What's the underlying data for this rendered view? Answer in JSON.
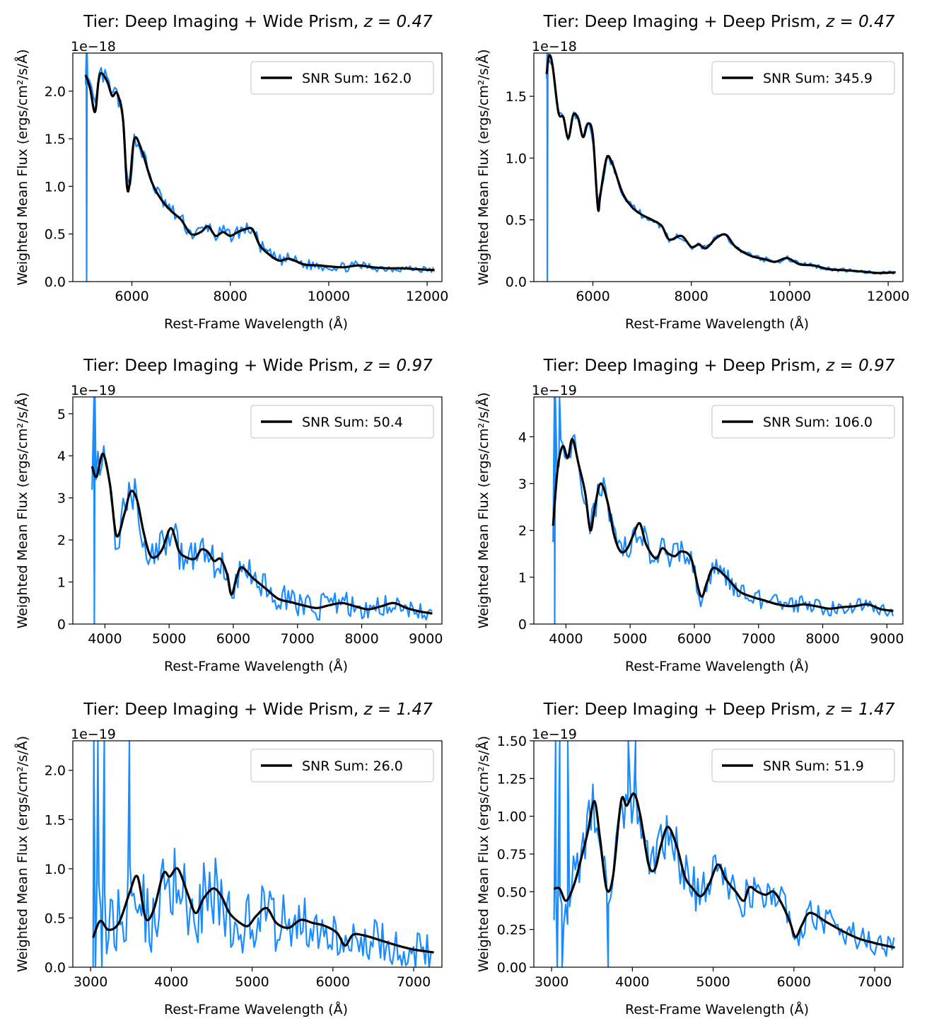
{
  "colors": {
    "raw": "#1a8cff",
    "smooth": "#000000",
    "axis": "#000000",
    "legend_edge": "#cccccc"
  },
  "chart_data": [
    {
      "type": "line",
      "title": "Tier: Deep Imaging + Wide Prism, ",
      "title_z": "z = 0.47",
      "xlabel": "Rest-Frame Wavelength (Å)",
      "ylabel": "Weighted Mean Flux (ergs/cm²/s/Å)",
      "offset_text": "1e−18",
      "xlim": [
        4800,
        12300
      ],
      "ylim": [
        0,
        2.4
      ],
      "xticks": [
        6000,
        8000,
        10000,
        12000
      ],
      "xtick_labels": [
        "6000",
        "8000",
        "10000",
        "12000"
      ],
      "yticks": [
        0,
        0.5,
        1.0,
        1.5,
        2.0
      ],
      "ytick_labels": [
        "0.0",
        "0.5",
        "1.0",
        "1.5",
        "2.0"
      ],
      "legend": "SNR Sum: 162.0",
      "legend_position": "upper right",
      "smooth": [
        [
          5060,
          2.17
        ],
        [
          5150,
          2.03
        ],
        [
          5250,
          1.78
        ],
        [
          5320,
          2.1
        ],
        [
          5380,
          2.19
        ],
        [
          5500,
          2.1
        ],
        [
          5600,
          1.95
        ],
        [
          5700,
          1.98
        ],
        [
          5820,
          1.7
        ],
        [
          5900,
          1.0
        ],
        [
          5960,
          1.05
        ],
        [
          6050,
          1.5
        ],
        [
          6200,
          1.38
        ],
        [
          6400,
          1.05
        ],
        [
          6600,
          0.86
        ],
        [
          6800,
          0.74
        ],
        [
          7000,
          0.65
        ],
        [
          7200,
          0.5
        ],
        [
          7400,
          0.52
        ],
        [
          7550,
          0.58
        ],
        [
          7700,
          0.48
        ],
        [
          7850,
          0.52
        ],
        [
          8000,
          0.48
        ],
        [
          8150,
          0.52
        ],
        [
          8300,
          0.55
        ],
        [
          8450,
          0.55
        ],
        [
          8600,
          0.38
        ],
        [
          8800,
          0.28
        ],
        [
          9000,
          0.22
        ],
        [
          9200,
          0.24
        ],
        [
          9500,
          0.18
        ],
        [
          9800,
          0.17
        ],
        [
          10000,
          0.16
        ],
        [
          10300,
          0.15
        ],
        [
          10600,
          0.17
        ],
        [
          10900,
          0.15
        ],
        [
          11200,
          0.14
        ],
        [
          11500,
          0.14
        ],
        [
          11800,
          0.13
        ],
        [
          12150,
          0.12
        ]
      ],
      "raw_spikes": [
        [
          5075,
          2.4
        ],
        [
          5080,
          0.0
        ],
        [
          5090,
          2.4
        ]
      ],
      "noise_scale": 0.07
    },
    {
      "type": "line",
      "title": "Tier: Deep Imaging + Deep Prism, ",
      "title_z": "z = 0.47",
      "xlabel": "Rest-Frame Wavelength (Å)",
      "ylabel": "Weighted Mean Flux (ergs/cm²/s/Å)",
      "offset_text": "1e−18",
      "xlim": [
        4800,
        12300
      ],
      "ylim": [
        0,
        1.85
      ],
      "xticks": [
        6000,
        8000,
        10000,
        12000
      ],
      "xtick_labels": [
        "6000",
        "8000",
        "10000",
        "12000"
      ],
      "yticks": [
        0,
        0.5,
        1.0,
        1.5
      ],
      "ytick_labels": [
        "0.0",
        "0.5",
        "1.0",
        "1.5"
      ],
      "legend": "SNR Sum: 345.9",
      "legend_position": "upper right",
      "smooth": [
        [
          5060,
          1.68
        ],
        [
          5110,
          1.83
        ],
        [
          5180,
          1.75
        ],
        [
          5300,
          1.37
        ],
        [
          5400,
          1.33
        ],
        [
          5500,
          1.16
        ],
        [
          5600,
          1.35
        ],
        [
          5700,
          1.32
        ],
        [
          5800,
          1.17
        ],
        [
          5900,
          1.28
        ],
        [
          6000,
          1.18
        ],
        [
          6100,
          0.6
        ],
        [
          6150,
          0.7
        ],
        [
          6280,
          1.0
        ],
        [
          6400,
          0.95
        ],
        [
          6600,
          0.72
        ],
        [
          6800,
          0.6
        ],
        [
          7000,
          0.54
        ],
        [
          7200,
          0.5
        ],
        [
          7400,
          0.45
        ],
        [
          7550,
          0.34
        ],
        [
          7800,
          0.37
        ],
        [
          8000,
          0.28
        ],
        [
          8150,
          0.3
        ],
        [
          8300,
          0.27
        ],
        [
          8500,
          0.35
        ],
        [
          8700,
          0.38
        ],
        [
          8900,
          0.28
        ],
        [
          9200,
          0.21
        ],
        [
          9500,
          0.18
        ],
        [
          9700,
          0.16
        ],
        [
          9950,
          0.19
        ],
        [
          10200,
          0.14
        ],
        [
          10500,
          0.13
        ],
        [
          10800,
          0.1
        ],
        [
          11200,
          0.09
        ],
        [
          11500,
          0.08
        ],
        [
          11800,
          0.07
        ],
        [
          12150,
          0.075
        ]
      ],
      "raw_spikes": [
        [
          5070,
          1.85
        ],
        [
          5075,
          0.0
        ],
        [
          5085,
          1.85
        ]
      ],
      "noise_scale": 0.025
    },
    {
      "type": "line",
      "title": "Tier: Deep Imaging + Wide Prism, ",
      "title_z": "z = 0.97",
      "xlabel": "Rest-Frame Wavelength (Å)",
      "ylabel": "Weighted Mean Flux (ergs/cm²/s/Å)",
      "offset_text": "1e−19",
      "xlim": [
        3500,
        9250
      ],
      "ylim": [
        0,
        5.4
      ],
      "xticks": [
        4000,
        5000,
        6000,
        7000,
        8000,
        9000
      ],
      "xtick_labels": [
        "4000",
        "5000",
        "6000",
        "7000",
        "8000",
        "9000"
      ],
      "yticks": [
        0,
        1,
        2,
        3,
        4,
        5
      ],
      "ytick_labels": [
        "0",
        "1",
        "2",
        "3",
        "4",
        "5"
      ],
      "legend": "SNR Sum: 50.4",
      "legend_position": "upper right",
      "smooth": [
        [
          3800,
          3.75
        ],
        [
          3870,
          3.5
        ],
        [
          3970,
          4.05
        ],
        [
          4080,
          3.3
        ],
        [
          4180,
          2.1
        ],
        [
          4300,
          2.6
        ],
        [
          4400,
          3.15
        ],
        [
          4500,
          2.95
        ],
        [
          4600,
          2.2
        ],
        [
          4700,
          1.65
        ],
        [
          4800,
          1.6
        ],
        [
          4900,
          1.8
        ],
        [
          5030,
          2.28
        ],
        [
          5150,
          1.75
        ],
        [
          5250,
          1.6
        ],
        [
          5400,
          1.55
        ],
        [
          5500,
          1.77
        ],
        [
          5600,
          1.72
        ],
        [
          5700,
          1.5
        ],
        [
          5800,
          1.55
        ],
        [
          5900,
          1.2
        ],
        [
          5970,
          0.7
        ],
        [
          6050,
          1.1
        ],
        [
          6130,
          1.35
        ],
        [
          6300,
          1.1
        ],
        [
          6500,
          0.85
        ],
        [
          6700,
          0.6
        ],
        [
          6900,
          0.52
        ],
        [
          7100,
          0.44
        ],
        [
          7300,
          0.38
        ],
        [
          7500,
          0.45
        ],
        [
          7700,
          0.5
        ],
        [
          7900,
          0.42
        ],
        [
          8100,
          0.35
        ],
        [
          8300,
          0.42
        ],
        [
          8500,
          0.5
        ],
        [
          8700,
          0.38
        ],
        [
          8900,
          0.3
        ],
        [
          9100,
          0.25
        ]
      ],
      "raw_spikes": [
        [
          3830,
          5.4
        ],
        [
          3835,
          0.0
        ],
        [
          3845,
          5.4
        ]
      ],
      "noise_scale": 0.4
    },
    {
      "type": "line",
      "title": "Tier: Deep Imaging + Deep Prism, ",
      "title_z": "z = 0.97",
      "xlabel": "Rest-Frame Wavelength (Å)",
      "ylabel": "Weighted Mean Flux (ergs/cm²/s/Å)",
      "offset_text": "1e−19",
      "xlim": [
        3500,
        9250
      ],
      "ylim": [
        0,
        4.85
      ],
      "xticks": [
        4000,
        5000,
        6000,
        7000,
        8000,
        9000
      ],
      "xtick_labels": [
        "4000",
        "5000",
        "6000",
        "7000",
        "8000",
        "9000"
      ],
      "yticks": [
        0,
        1,
        2,
        3,
        4
      ],
      "ytick_labels": [
        "0",
        "1",
        "2",
        "3",
        "4"
      ],
      "legend": "SNR Sum: 106.0",
      "legend_position": "upper right",
      "smooth": [
        [
          3800,
          2.1
        ],
        [
          3870,
          3.3
        ],
        [
          3950,
          3.8
        ],
        [
          4030,
          3.55
        ],
        [
          4100,
          3.95
        ],
        [
          4200,
          3.4
        ],
        [
          4300,
          2.8
        ],
        [
          4380,
          2.0
        ],
        [
          4450,
          2.5
        ],
        [
          4540,
          3.0
        ],
        [
          4650,
          2.6
        ],
        [
          4750,
          1.9
        ],
        [
          4850,
          1.55
        ],
        [
          4950,
          1.6
        ],
        [
          5050,
          1.9
        ],
        [
          5150,
          2.15
        ],
        [
          5250,
          1.7
        ],
        [
          5400,
          1.4
        ],
        [
          5500,
          1.62
        ],
        [
          5600,
          1.5
        ],
        [
          5700,
          1.45
        ],
        [
          5800,
          1.55
        ],
        [
          5950,
          1.4
        ],
        [
          6100,
          0.6
        ],
        [
          6200,
          0.9
        ],
        [
          6300,
          1.2
        ],
        [
          6500,
          1.0
        ],
        [
          6700,
          0.7
        ],
        [
          6900,
          0.58
        ],
        [
          7100,
          0.5
        ],
        [
          7300,
          0.42
        ],
        [
          7500,
          0.38
        ],
        [
          7700,
          0.42
        ],
        [
          7900,
          0.38
        ],
        [
          8100,
          0.33
        ],
        [
          8300,
          0.36
        ],
        [
          8500,
          0.38
        ],
        [
          8700,
          0.42
        ],
        [
          8900,
          0.32
        ],
        [
          9100,
          0.28
        ]
      ],
      "raw_spikes": [
        [
          3820,
          4.85
        ],
        [
          3825,
          0.0
        ],
        [
          3835,
          4.85
        ],
        [
          3900,
          4.85
        ]
      ],
      "noise_scale": 0.25
    },
    {
      "type": "line",
      "title": "Tier: Deep Imaging + Wide Prism, ",
      "title_z": "z = 1.47",
      "xlabel": "Rest-Frame Wavelength (Å)",
      "ylabel": "Weighted Mean Flux (ergs/cm²/s/Å)",
      "offset_text": "1e−19",
      "xlim": [
        2780,
        7350
      ],
      "ylim": [
        0,
        2.3
      ],
      "xticks": [
        3000,
        4000,
        5000,
        6000,
        7000
      ],
      "xtick_labels": [
        "3000",
        "4000",
        "5000",
        "6000",
        "7000"
      ],
      "yticks": [
        0,
        0.5,
        1.0,
        1.5,
        2.0
      ],
      "ytick_labels": [
        "0.0",
        "0.5",
        "1.0",
        "1.5",
        "2.0"
      ],
      "legend": "SNR Sum: 26.0",
      "legend_position": "upper right",
      "smooth": [
        [
          3030,
          0.3
        ],
        [
          3120,
          0.47
        ],
        [
          3220,
          0.38
        ],
        [
          3350,
          0.45
        ],
        [
          3480,
          0.75
        ],
        [
          3580,
          0.92
        ],
        [
          3680,
          0.5
        ],
        [
          3780,
          0.58
        ],
        [
          3900,
          0.95
        ],
        [
          3980,
          0.92
        ],
        [
          4080,
          1.0
        ],
        [
          4200,
          0.75
        ],
        [
          4300,
          0.55
        ],
        [
          4400,
          0.7
        ],
        [
          4520,
          0.8
        ],
        [
          4620,
          0.72
        ],
        [
          4720,
          0.55
        ],
        [
          4850,
          0.45
        ],
        [
          4950,
          0.42
        ],
        [
          5050,
          0.52
        ],
        [
          5180,
          0.6
        ],
        [
          5300,
          0.45
        ],
        [
          5450,
          0.4
        ],
        [
          5600,
          0.48
        ],
        [
          5750,
          0.45
        ],
        [
          5900,
          0.42
        ],
        [
          6050,
          0.35
        ],
        [
          6150,
          0.22
        ],
        [
          6250,
          0.33
        ],
        [
          6400,
          0.32
        ],
        [
          6600,
          0.27
        ],
        [
          6800,
          0.22
        ],
        [
          7000,
          0.18
        ],
        [
          7250,
          0.15
        ]
      ],
      "raw_spikes": [
        [
          3040,
          2.3
        ],
        [
          3060,
          0.0
        ],
        [
          3090,
          2.3
        ],
        [
          3140,
          0.0
        ],
        [
          3170,
          2.3
        ],
        [
          3480,
          2.3
        ]
      ],
      "noise_scale": 0.35
    },
    {
      "type": "line",
      "title": "Tier: Deep Imaging + Deep Prism, ",
      "title_z": "z = 1.47",
      "xlabel": "Rest-Frame Wavelength (Å)",
      "ylabel": "Weighted Mean Flux (ergs/cm²/s/Å)",
      "offset_text": "1e−19",
      "xlim": [
        2780,
        7350
      ],
      "ylim": [
        0,
        1.5
      ],
      "xticks": [
        3000,
        4000,
        5000,
        6000,
        7000
      ],
      "xtick_labels": [
        "3000",
        "4000",
        "5000",
        "6000",
        "7000"
      ],
      "yticks": [
        0,
        0.25,
        0.5,
        0.75,
        1.0,
        1.25,
        1.5
      ],
      "ytick_labels": [
        "0.00",
        "0.25",
        "0.50",
        "0.75",
        "1.00",
        "1.25",
        "1.50"
      ],
      "legend": "SNR Sum: 51.9",
      "legend_position": "upper right",
      "smooth": [
        [
          3030,
          0.52
        ],
        [
          3100,
          0.52
        ],
        [
          3180,
          0.44
        ],
        [
          3280,
          0.55
        ],
        [
          3380,
          0.75
        ],
        [
          3450,
          0.9
        ],
        [
          3530,
          1.1
        ],
        [
          3600,
          0.85
        ],
        [
          3680,
          0.52
        ],
        [
          3760,
          0.6
        ],
        [
          3860,
          1.1
        ],
        [
          3930,
          1.07
        ],
        [
          4020,
          1.15
        ],
        [
          4100,
          1.0
        ],
        [
          4200,
          0.68
        ],
        [
          4280,
          0.65
        ],
        [
          4350,
          0.8
        ],
        [
          4440,
          0.93
        ],
        [
          4550,
          0.8
        ],
        [
          4650,
          0.6
        ],
        [
          4750,
          0.52
        ],
        [
          4850,
          0.47
        ],
        [
          4950,
          0.55
        ],
        [
          5060,
          0.68
        ],
        [
          5160,
          0.58
        ],
        [
          5280,
          0.5
        ],
        [
          5380,
          0.44
        ],
        [
          5450,
          0.53
        ],
        [
          5550,
          0.5
        ],
        [
          5650,
          0.48
        ],
        [
          5750,
          0.5
        ],
        [
          5850,
          0.42
        ],
        [
          5950,
          0.3
        ],
        [
          6020,
          0.2
        ],
        [
          6100,
          0.28
        ],
        [
          6200,
          0.36
        ],
        [
          6400,
          0.3
        ],
        [
          6600,
          0.24
        ],
        [
          6800,
          0.19
        ],
        [
          7000,
          0.16
        ],
        [
          7250,
          0.13
        ]
      ],
      "raw_spikes": [
        [
          3050,
          1.5
        ],
        [
          3070,
          0.0
        ],
        [
          3100,
          1.5
        ],
        [
          3130,
          0.0
        ],
        [
          3200,
          1.5
        ],
        [
          3700,
          0.0
        ],
        [
          3950,
          1.5
        ],
        [
          4040,
          1.5
        ]
      ],
      "noise_scale": 0.15
    }
  ]
}
